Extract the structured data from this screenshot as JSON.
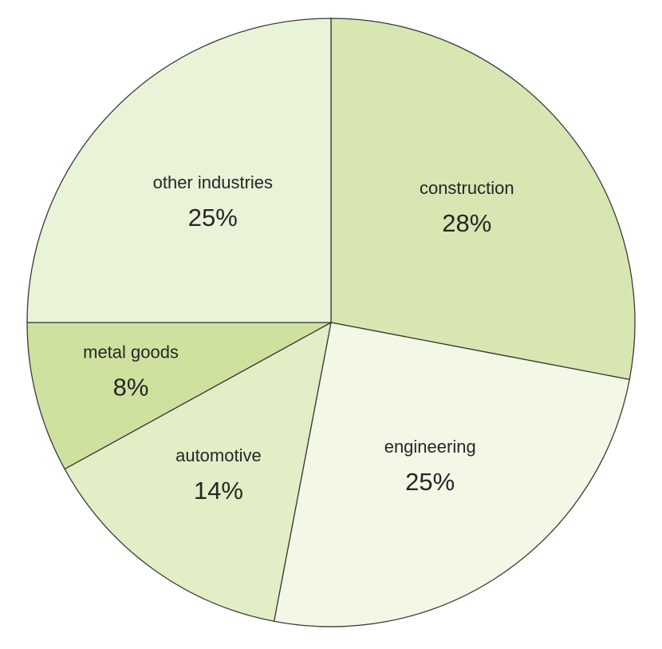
{
  "chart_data": {
    "type": "pie",
    "start": "12 o'clock",
    "direction": "clockwise",
    "slices": [
      {
        "label": "construction",
        "value": 28,
        "value_label": "28%",
        "color": "#d8e6b2"
      },
      {
        "label": "engineering",
        "value": 25,
        "value_label": "25%",
        "color": "#f2f7e6"
      },
      {
        "label": "automotive",
        "value": 14,
        "value_label": "14%",
        "color": "#e2eec5"
      },
      {
        "label": "metal goods",
        "value": 8,
        "value_label": "8%",
        "color": "#cfe19f"
      },
      {
        "label": "other industries",
        "value": 25,
        "value_label": "25%",
        "color": "#e9f3d7"
      }
    ]
  }
}
